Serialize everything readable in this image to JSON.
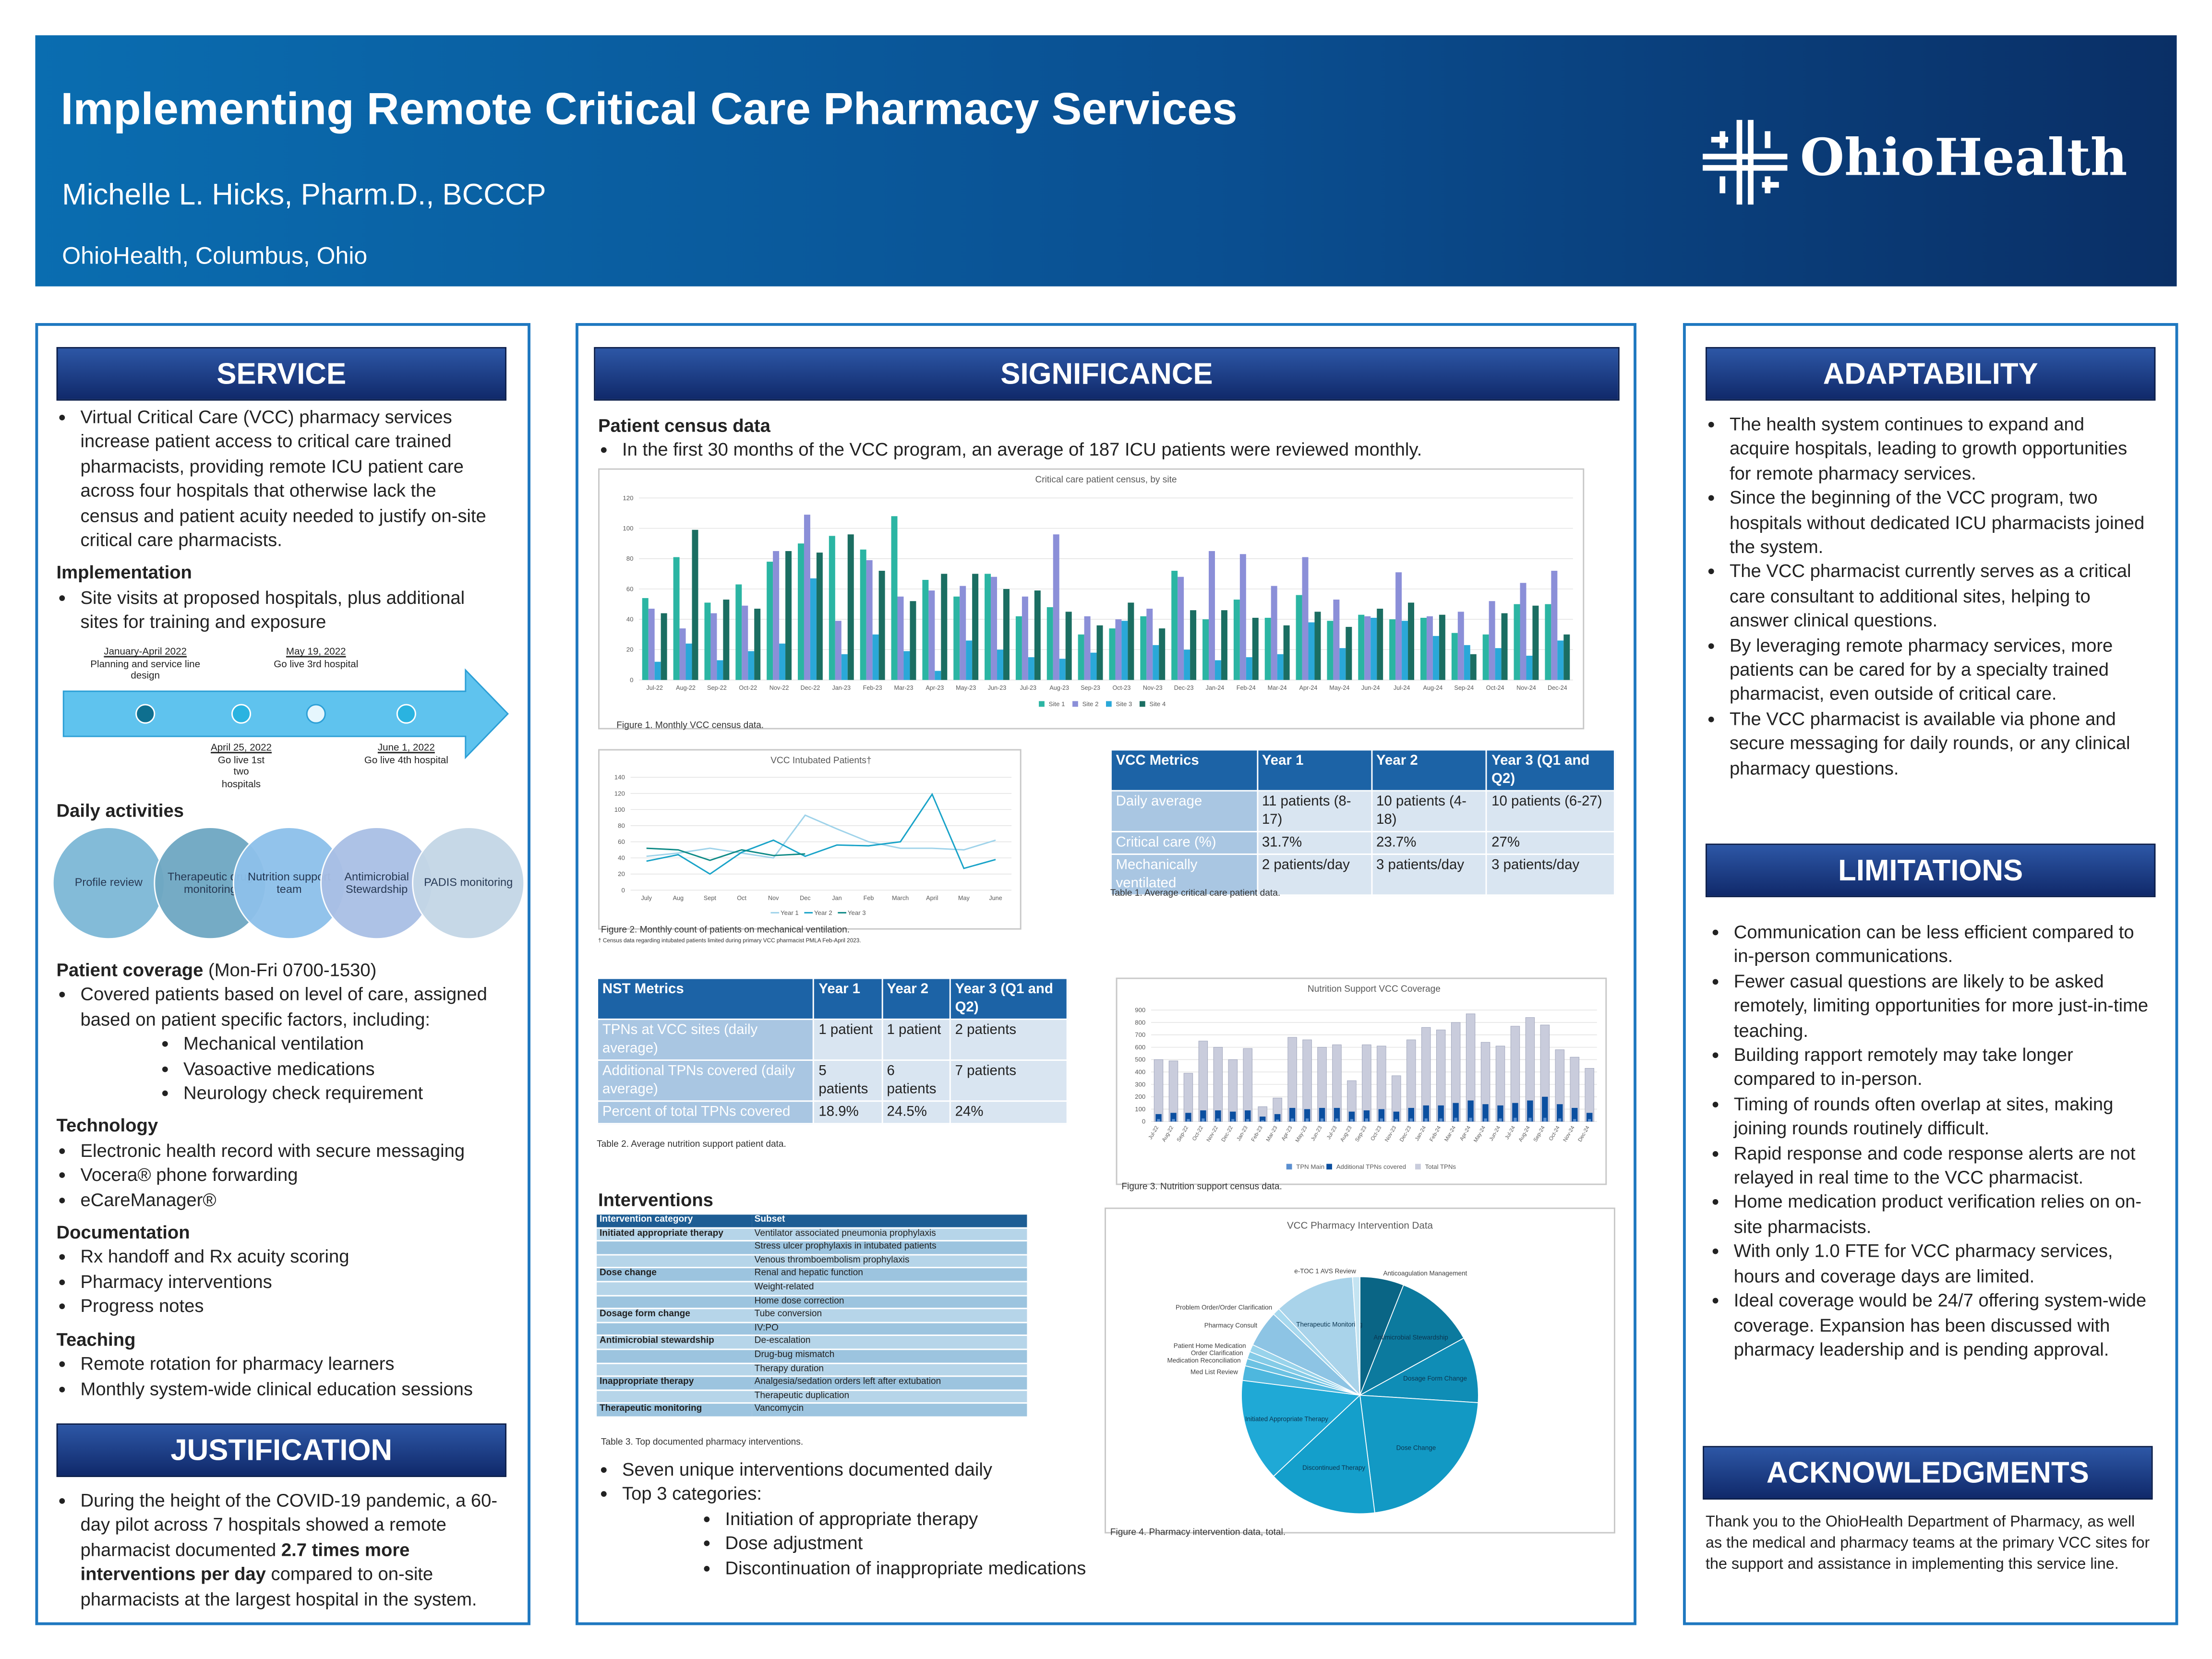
{
  "header": {
    "title": "Implementing Remote Critical Care Pharmacy Services",
    "author": "Michelle L. Hicks, Pharm.D., BCCCP",
    "affiliation": "OhioHealth, Columbus, Ohio",
    "logo": "OhioHealth"
  },
  "service": {
    "heading": "SERVICE",
    "intro": [
      "Virtual Critical Care (VCC) pharmacy services increase patient access to critical care trained pharmacists, providing remote ICU patient care across four hospitals that otherwise lack the census and patient acuity needed to justify on-site critical care pharmacists."
    ],
    "implementation": {
      "heading": "Implementation",
      "items": [
        "Site visits at proposed hospitals, plus additional sites for training and exposure"
      ]
    },
    "timeline": [
      {
        "date": "January-April 2022",
        "label": "Planning and service line design"
      },
      {
        "date": "April 25, 2022",
        "label": "Go live 1st two hospitals"
      },
      {
        "date": "May 19, 2022",
        "label": "Go live 3rd hospital"
      },
      {
        "date": "June 1, 2022",
        "label": "Go live 4th hospital"
      }
    ],
    "daily_activities": {
      "heading": "Daily activities",
      "items": [
        "Profile review",
        "Therapeutic drug monitoring",
        "Nutrition support team",
        "Antimicrobial Stewardship",
        "PADIS monitoring"
      ]
    },
    "patient_coverage": {
      "heading": "Patient coverage",
      "hours": "(Mon-Fri 0700-1530)",
      "items": [
        "Covered patients based on level of care, assigned based on patient specific factors, including:"
      ],
      "factors": [
        "Mechanical ventilation",
        "Vasoactive medications",
        "Neurology check requirement"
      ]
    },
    "technology": {
      "heading": "Technology",
      "items": [
        "Electronic health record with secure messaging",
        "Vocera® phone forwarding",
        "eCareManager®"
      ]
    },
    "documentation": {
      "heading": "Documentation",
      "items": [
        "Rx handoff and Rx acuity scoring",
        "Pharmacy interventions",
        "Progress notes"
      ]
    },
    "teaching": {
      "heading": "Teaching",
      "items": [
        "Remote rotation for pharmacy learners",
        "Monthly system-wide clinical education sessions"
      ]
    }
  },
  "justification": {
    "heading": "JUSTIFICATION",
    "paragraph": [
      {
        "text": "During the height of the COVID-19 pandemic, a 60-day pilot across 7 hospitals showed a remote pharmacist documented "
      },
      {
        "text": "2.7 times more interventions per day",
        "bold": true
      },
      {
        "text": " compared to on-site pharmacists at the largest hospital in the system."
      }
    ]
  },
  "significance": {
    "heading": "SIGNIFICANCE",
    "census_heading": "Patient census data",
    "census_items": [
      "In the first 30 months of the VCC program, an average of 187 ICU patients were reviewed monthly."
    ],
    "figure1_caption": "Figure 1. Monthly VCC census data.",
    "figure2_caption": "Figure 2. Monthly count of patients on mechanical ventilation.",
    "figure2_note": "† Census data regarding intubated patients limited during primary VCC pharmacist PMLA Feb-April 2023.",
    "table1": {
      "header": [
        "VCC Metrics",
        "Year 1",
        "Year 2",
        "Year 3 (Q1 and Q2)"
      ],
      "rows": [
        [
          "Daily average",
          "11 patients (8-17)",
          "10 patients (4-18)",
          "10 patients (6-27)"
        ],
        [
          "Critical care (%)",
          "31.7%",
          "23.7%",
          "27%"
        ],
        [
          "Mechanically ventilated",
          "2 patients/day",
          "3 patients/day",
          "3 patients/day"
        ]
      ],
      "caption": "Table 1. Average critical care patient data."
    },
    "table2": {
      "header": [
        "NST Metrics",
        "Year 1",
        "Year 2",
        "Year 3 (Q1 and Q2)"
      ],
      "rows": [
        [
          "TPNs at VCC sites (daily average)",
          "1 patient",
          "1 patient",
          "2 patients"
        ],
        [
          "Additional TPNs covered (daily average)",
          "5 patients",
          "6 patients",
          "7 patients"
        ],
        [
          "Percent of total TPNs covered",
          "18.9%",
          "24.5%",
          "24%"
        ]
      ],
      "caption": "Table 2. Average nutrition support patient data."
    },
    "figure3_caption": "Figure 3. Nutrition support census data.",
    "interventions": {
      "heading": "Interventions",
      "table3": {
        "header": [
          "Intervention category",
          "Subset"
        ],
        "rows": [
          [
            "Initiated appropriate therapy",
            "Ventilator associated pneumonia prophylaxis"
          ],
          [
            null,
            "Stress ulcer prophylaxis in intubated patients"
          ],
          [
            null,
            "Venous thromboembolism prophylaxis"
          ],
          [
            "Dose change",
            "Renal and hepatic function"
          ],
          [
            null,
            "Weight-related"
          ],
          [
            null,
            "Home dose correction"
          ],
          [
            "Dosage form change",
            "Tube conversion"
          ],
          [
            null,
            "IV:PO"
          ],
          [
            "Antimicrobial stewardship",
            "De-escalation"
          ],
          [
            null,
            "Drug-bug mismatch"
          ],
          [
            null,
            "Therapy duration"
          ],
          [
            "Inappropriate therapy",
            "Analgesia/sedation orders left after extubation"
          ],
          [
            null,
            "Therapeutic duplication"
          ],
          [
            "Therapeutic monitoring",
            "Vancomycin"
          ]
        ],
        "caption": "Table 3. Top documented pharmacy interventions."
      },
      "items": [
        "Seven unique interventions documented daily",
        "Top 3 categories:"
      ],
      "top3": [
        "Initiation of appropriate therapy",
        "Dose adjustment",
        "Discontinuation of inappropriate medications"
      ]
    },
    "figure4_caption": "Figure 4. Pharmacy intervention data, total."
  },
  "adaptability": {
    "heading": "ADAPTABILITY",
    "items": [
      "The health system continues to expand and acquire hospitals, leading to growth opportunities for remote pharmacy services.",
      "Since the beginning of the VCC program, two hospitals without dedicated ICU pharmacists joined the system.",
      "The VCC pharmacist currently serves as a critical care consultant to additional sites, helping to answer clinical questions.",
      "By leveraging remote pharmacy services, more patients can be cared for by a specialty trained pharmacist, even outside of critical care.",
      "The VCC pharmacist is available via phone and secure messaging for daily rounds, or any clinical pharmacy questions."
    ]
  },
  "limitations": {
    "heading": "LIMITATIONS",
    "items": [
      "Communication can be less efficient compared to in-person communications.",
      "Fewer casual questions are likely to be asked remotely, limiting  opportunities for more just-in-time teaching.",
      "Building rapport remotely may take longer compared to in-person.",
      "Timing of rounds often overlap at sites, making joining rounds routinely difficult.",
      "Rapid response and code response alerts are not relayed in real time to the VCC pharmacist.",
      "Home medication product verification relies on on-site pharmacists.",
      "With only 1.0 FTE for VCC pharmacy services, hours and coverage days are limited.",
      "Ideal coverage would be 24/7 offering system-wide coverage. Expansion has been discussed with pharmacy leadership and is pending approval."
    ]
  },
  "acknowledgments": {
    "heading": "ACKNOWLEDGMENTS",
    "text": "Thank you to the OhioHealth Department of Pharmacy, as well as the medical and pharmacy teams at the primary VCC sites for the support and assistance in implementing this service line."
  },
  "chart_data": [
    {
      "type": "bar",
      "title": "Critical care patient census, by site",
      "grid": true,
      "legend": "bottom",
      "categories": [
        "Jul-22",
        "Aug-22",
        "Sep-22",
        "Oct-22",
        "Nov-22",
        "Dec-22",
        "Jan-23",
        "Feb-23",
        "Mar-23",
        "Apr-23",
        "May-23",
        "Jun-23",
        "Jul-23",
        "Aug-23",
        "Sep-23",
        "Oct-23",
        "Nov-23",
        "Dec-23",
        "Jan-24",
        "Feb-24",
        "Mar-24",
        "Apr-24",
        "May-24",
        "Jun-24",
        "Jul-24",
        "Aug-24",
        "Sep-24",
        "Oct-24",
        "Nov-24",
        "Dec-24"
      ],
      "ylim": [
        0,
        120
      ],
      "yticks": [
        0,
        20,
        40,
        60,
        80,
        100,
        120
      ],
      "series": [
        {
          "name": "Site 1",
          "color": "#2bb5a3",
          "values": [
            54,
            81,
            51,
            63,
            78,
            90,
            95,
            86,
            108,
            66,
            55,
            70,
            42,
            48,
            30,
            34,
            42,
            72,
            40,
            53,
            41,
            56,
            39,
            43,
            40,
            41,
            31,
            30,
            50,
            50
          ]
        },
        {
          "name": "Site 2",
          "color": "#8b8fd8",
          "values": [
            47,
            34,
            44,
            49,
            85,
            109,
            39,
            79,
            55,
            59,
            62,
            68,
            55,
            96,
            42,
            40,
            47,
            68,
            85,
            83,
            62,
            81,
            53,
            42,
            71,
            42,
            45,
            52,
            64,
            72
          ]
        },
        {
          "name": "Site 3",
          "color": "#2aa8d8",
          "values": [
            12,
            24,
            13,
            19,
            24,
            67,
            17,
            30,
            19,
            6,
            26,
            20,
            15,
            14,
            18,
            39,
            23,
            20,
            13,
            15,
            17,
            38,
            21,
            41,
            39,
            29,
            23,
            21,
            16,
            26
          ]
        },
        {
          "name": "Site 4",
          "color": "#1b6e62",
          "values": [
            44,
            99,
            53,
            47,
            85,
            84,
            96,
            72,
            52,
            70,
            70,
            60,
            59,
            45,
            36,
            51,
            34,
            46,
            46,
            41,
            36,
            45,
            35,
            47,
            51,
            43,
            17,
            44,
            49,
            30
          ]
        }
      ]
    },
    {
      "type": "line",
      "title": "VCC Intubated Patients†",
      "grid": true,
      "legend": "bottom",
      "categories": [
        "July",
        "Aug",
        "Sept",
        "Oct",
        "Nov",
        "Dec",
        "Jan",
        "Feb",
        "March",
        "April",
        "May",
        "June"
      ],
      "ylim": [
        0,
        140
      ],
      "yticks": [
        0,
        20,
        40,
        60,
        80,
        100,
        120,
        140
      ],
      "series": [
        {
          "name": "Year 1",
          "color": "#9fd3ea",
          "values": [
            42,
            46,
            52,
            46,
            40,
            93,
            76,
            60,
            52,
            52,
            50,
            62
          ]
        },
        {
          "name": "Year 2",
          "color": "#19a3c8",
          "values": [
            36,
            44,
            20,
            47,
            62,
            42,
            56,
            55,
            60,
            119,
            27,
            38
          ]
        },
        {
          "name": "Year 3",
          "color": "#0e8a86",
          "values": [
            52,
            50,
            37,
            50,
            43,
            45,
            null,
            null,
            null,
            null,
            null,
            null
          ]
        }
      ]
    },
    {
      "type": "overlay_bar",
      "title": "Nutrition Support VCC Coverage",
      "grid": true,
      "legend": "bottom",
      "categories": [
        "Jul-22",
        "Aug-22",
        "Sep-22",
        "Oct-22",
        "Nov-22",
        "Dec-22",
        "Jan-23",
        "Feb-23",
        "Mar-23",
        "Apr-23",
        "May-23",
        "Jun-23",
        "Jul-23",
        "Aug-23",
        "Sep-23",
        "Oct-23",
        "Nov-23",
        "Dec-23",
        "Jan-24",
        "Feb-24",
        "Mar-24",
        "Apr-24",
        "May-24",
        "Jun-24",
        "Jul-24",
        "Aug-24",
        "Sep-24",
        "Oct-24",
        "Nov-24",
        "Dec-24"
      ],
      "ylim": [
        0,
        900
      ],
      "yticks": [
        0,
        100,
        200,
        300,
        400,
        500,
        600,
        700,
        800,
        900
      ],
      "series": [
        {
          "name": "TPN Main",
          "color": "#5b8fd0",
          "values": [
            20,
            20,
            20,
            25,
            25,
            20,
            20,
            10,
            15,
            25,
            25,
            25,
            25,
            20,
            25,
            25,
            20,
            25,
            25,
            25,
            30,
            30,
            25,
            25,
            30,
            30,
            30,
            25,
            20,
            20
          ]
        },
        {
          "name": "Additional TPNs covered",
          "color": "#0b4fa0",
          "values": [
            60,
            70,
            70,
            90,
            90,
            80,
            90,
            40,
            60,
            110,
            100,
            110,
            110,
            80,
            90,
            100,
            80,
            110,
            130,
            130,
            150,
            170,
            140,
            130,
            150,
            170,
            200,
            140,
            110,
            70
          ]
        },
        {
          "name": "Total TPNs",
          "color": "#c9ccdc",
          "values": [
            500,
            490,
            390,
            650,
            600,
            500,
            590,
            120,
            190,
            680,
            660,
            600,
            620,
            330,
            620,
            610,
            370,
            660,
            760,
            740,
            800,
            870,
            640,
            610,
            770,
            840,
            780,
            580,
            520,
            430
          ]
        }
      ]
    },
    {
      "type": "pie",
      "title": "VCC Pharmacy Intervention Data",
      "categories": [
        "Anticoagulation Management",
        "Antimicrobial Stewardship",
        "Dosage Form Change",
        "Dose Change",
        "Discontinued Therapy",
        "Initiated Appropriate Therapy",
        "Med List Review",
        "Medication Reconciliation",
        "Order Clarification",
        "Patient Home Medication",
        "Pharmacy Consult",
        "Problem Order/Order Clarification",
        "Therapeutic Monitoring",
        "e-TOC 1 AVS Review"
      ],
      "values": [
        6,
        11,
        9,
        22,
        15,
        14,
        2,
        1,
        1,
        1,
        5,
        1,
        11,
        1
      ],
      "colors": [
        "#0a6585",
        "#0c7a9e",
        "#0f8db6",
        "#1299c4",
        "#149fcb",
        "#1fa9d6",
        "#4eb7de",
        "#6cc2e3",
        "#84cbe7",
        "#98d3eb",
        "#8dc4e4",
        "#a7d8ee",
        "#a9d3ea",
        "#c4e4f2"
      ]
    }
  ]
}
